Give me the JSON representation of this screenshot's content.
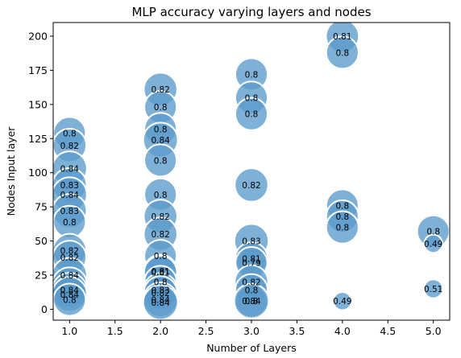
{
  "chart_data": {
    "type": "scatter",
    "title": "MLP accuracy varying layers and nodes",
    "xlabel": "Number of Layers",
    "ylabel": "Nodes Input layer",
    "xlim": [
      0.82,
      5.18
    ],
    "ylim": [
      -8,
      210
    ],
    "xticks": [
      "1.0",
      "1.5",
      "2.0",
      "2.5",
      "3.0",
      "3.5",
      "4.0",
      "4.5",
      "5.0"
    ],
    "yticks": [
      "0",
      "25",
      "50",
      "75",
      "100",
      "125",
      "150",
      "175",
      "200"
    ],
    "marker_color": "#5b9bcc",
    "points": [
      {
        "x": 1,
        "y": 129,
        "label": "0.8",
        "acc": 0.8
      },
      {
        "x": 1,
        "y": 120,
        "label": "0.82",
        "acc": 0.82
      },
      {
        "x": 1,
        "y": 103,
        "label": "0.84",
        "acc": 0.84
      },
      {
        "x": 1,
        "y": 91,
        "label": "0.83",
        "acc": 0.83
      },
      {
        "x": 1,
        "y": 84,
        "label": "0.84",
        "acc": 0.84
      },
      {
        "x": 1,
        "y": 72,
        "label": "0.83",
        "acc": 0.83
      },
      {
        "x": 1,
        "y": 64,
        "label": "0.8",
        "acc": 0.8
      },
      {
        "x": 1,
        "y": 43,
        "label": "0.82",
        "acc": 0.82
      },
      {
        "x": 1,
        "y": 38,
        "label": "0.82",
        "acc": 0.82
      },
      {
        "x": 1,
        "y": 25,
        "label": "0.84",
        "acc": 0.84
      },
      {
        "x": 1,
        "y": 18,
        "label": "",
        "acc": 0.84
      },
      {
        "x": 1,
        "y": 14,
        "label": "0.84",
        "acc": 0.84
      },
      {
        "x": 1,
        "y": 11,
        "label": "0.84",
        "acc": 0.84
      },
      {
        "x": 1,
        "y": 7,
        "label": "0.8",
        "acc": 0.8
      },
      {
        "x": 2,
        "y": 161,
        "label": "0.82",
        "acc": 0.82
      },
      {
        "x": 2,
        "y": 148,
        "label": "0.8",
        "acc": 0.8
      },
      {
        "x": 2,
        "y": 132,
        "label": "0.8",
        "acc": 0.8
      },
      {
        "x": 2,
        "y": 124,
        "label": "0.84",
        "acc": 0.84
      },
      {
        "x": 2,
        "y": 109,
        "label": "0.8",
        "acc": 0.8
      },
      {
        "x": 2,
        "y": 84,
        "label": "0.8",
        "acc": 0.8
      },
      {
        "x": 2,
        "y": 68,
        "label": "0.82",
        "acc": 0.82
      },
      {
        "x": 2,
        "y": 55,
        "label": "0.82",
        "acc": 0.82
      },
      {
        "x": 2,
        "y": 39,
        "label": "0.8",
        "acc": 0.8
      },
      {
        "x": 2,
        "y": 28,
        "label": "0.81",
        "acc": 0.81
      },
      {
        "x": 2,
        "y": 27,
        "label": "0.81",
        "acc": 0.81
      },
      {
        "x": 2,
        "y": 20,
        "label": "0.8",
        "acc": 0.8
      },
      {
        "x": 2,
        "y": 14,
        "label": "0.83",
        "acc": 0.83
      },
      {
        "x": 2,
        "y": 12,
        "label": "0.82",
        "acc": 0.82
      },
      {
        "x": 2,
        "y": 7,
        "label": "0.84",
        "acc": 0.84
      },
      {
        "x": 2,
        "y": 5,
        "label": "0.84",
        "acc": 0.84
      },
      {
        "x": 3,
        "y": 172,
        "label": "0.8",
        "acc": 0.8
      },
      {
        "x": 3,
        "y": 155,
        "label": "0.8",
        "acc": 0.8
      },
      {
        "x": 3,
        "y": 143,
        "label": "0.8",
        "acc": 0.8
      },
      {
        "x": 3,
        "y": 91,
        "label": "0.82",
        "acc": 0.82
      },
      {
        "x": 3,
        "y": 50,
        "label": "0.83",
        "acc": 0.83
      },
      {
        "x": 3,
        "y": 37,
        "label": "0.81",
        "acc": 0.81
      },
      {
        "x": 3,
        "y": 34,
        "label": "0.79",
        "acc": 0.79
      },
      {
        "x": 3,
        "y": 20,
        "label": "0.82",
        "acc": 0.82
      },
      {
        "x": 3,
        "y": 14,
        "label": "0.8",
        "acc": 0.8
      },
      {
        "x": 3,
        "y": 6,
        "label": "0.8",
        "acc": 0.8
      },
      {
        "x": 3,
        "y": 6,
        "label": "0.84",
        "acc": 0.84
      },
      {
        "x": 4,
        "y": 200,
        "label": "0.81",
        "acc": 0.81
      },
      {
        "x": 4,
        "y": 188,
        "label": "0.8",
        "acc": 0.8
      },
      {
        "x": 4,
        "y": 76,
        "label": "0.8",
        "acc": 0.8
      },
      {
        "x": 4,
        "y": 68,
        "label": "0.8",
        "acc": 0.8
      },
      {
        "x": 4,
        "y": 60,
        "label": "0.8",
        "acc": 0.8
      },
      {
        "x": 4,
        "y": 6,
        "label": "0.49",
        "acc": 0.49
      },
      {
        "x": 5,
        "y": 57,
        "label": "0.8",
        "acc": 0.8
      },
      {
        "x": 5,
        "y": 48,
        "label": "0.49",
        "acc": 0.49
      },
      {
        "x": 5,
        "y": 15,
        "label": "0.51",
        "acc": 0.51
      }
    ]
  }
}
